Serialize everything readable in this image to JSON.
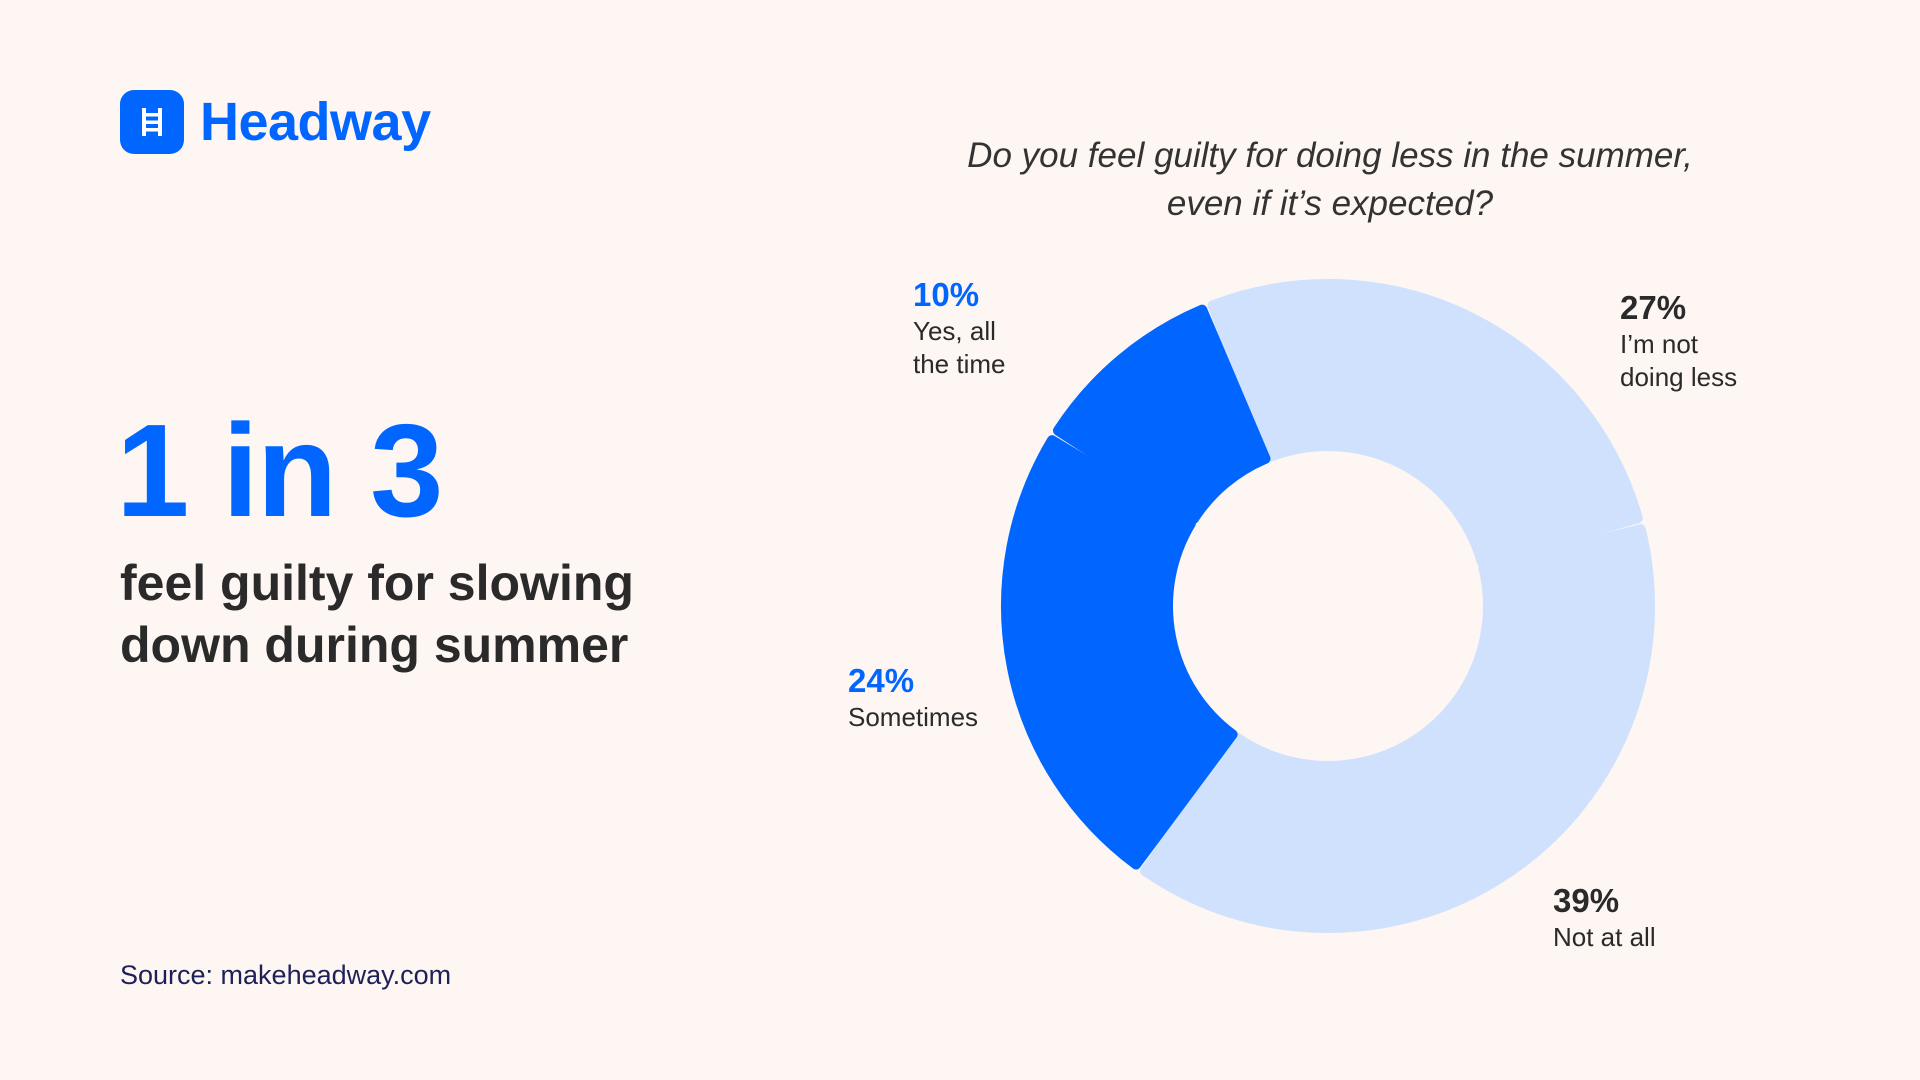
{
  "brand": {
    "name": "Headway",
    "logo_icon": "ladder-book-icon",
    "color": "#0066ff"
  },
  "headline": "1 in 3",
  "subheadline": "feel guilty for slowing down during summer",
  "source": "Source: makeheadway.com",
  "colors": {
    "background": "#fdf6f3",
    "primary": "#0066ff",
    "light": "#cfe1fd",
    "text": "#2a2a2a"
  },
  "chart_data": {
    "type": "pie",
    "donut": true,
    "title": "Do you feel guilty for doing less in the summer, even if it’s expected?",
    "slices": [
      {
        "label": "I’m not\ndoing less",
        "value": 27,
        "value_label": "27%",
        "color": "#cfe1fd"
      },
      {
        "label": "Not at all",
        "value": 39,
        "value_label": "39%",
        "color": "#cfe1fd"
      },
      {
        "label": "Sometimes",
        "value": 24,
        "value_label": "24%",
        "color": "#0066ff"
      },
      {
        "label": "Yes, all\nthe time",
        "value": 10,
        "value_label": "10%",
        "color": "#0066ff"
      }
    ]
  }
}
